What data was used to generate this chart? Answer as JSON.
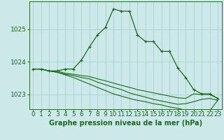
{
  "title": "Graphe pression niveau de la mer (hPa)",
  "bg_color": "#cce8e8",
  "grid_color": "#aad4d4",
  "line_color": "#1a6b1a",
  "hours": [
    0,
    1,
    2,
    3,
    4,
    5,
    6,
    7,
    8,
    9,
    10,
    11,
    12,
    13,
    14,
    15,
    16,
    17,
    18,
    19,
    20,
    21,
    22,
    23
  ],
  "series": [
    [
      1023.78,
      1023.78,
      1023.72,
      1023.72,
      1023.78,
      1023.78,
      1024.05,
      1024.45,
      1024.82,
      1025.05,
      1025.62,
      1025.55,
      1025.55,
      1024.82,
      1024.62,
      1024.62,
      1024.32,
      1024.32,
      1023.82,
      1023.52,
      1023.15,
      1023.02,
      1023.02,
      1022.88
    ],
    [
      1023.78,
      1023.78,
      1023.72,
      1023.72,
      1023.65,
      1023.62,
      1023.58,
      1023.55,
      1023.48,
      1023.42,
      1023.35,
      1023.28,
      1023.22,
      1023.15,
      1023.1,
      1023.05,
      1023.0,
      1022.95,
      1022.9,
      1022.88,
      1023.02,
      1023.0,
      1023.0,
      1022.88
    ],
    [
      1023.78,
      1023.78,
      1023.72,
      1023.68,
      1023.62,
      1023.58,
      1023.52,
      1023.48,
      1023.38,
      1023.3,
      1023.22,
      1023.15,
      1023.05,
      1022.98,
      1022.92,
      1022.85,
      1022.8,
      1022.75,
      1022.7,
      1022.72,
      1022.78,
      1022.85,
      1022.88,
      1022.82
    ],
    [
      1023.78,
      1023.78,
      1023.72,
      1023.68,
      1023.6,
      1023.52,
      1023.42,
      1023.32,
      1023.22,
      1023.12,
      1023.02,
      1022.95,
      1022.88,
      1022.82,
      1022.78,
      1022.72,
      1022.68,
      1022.62,
      1022.58,
      1022.52,
      1022.48,
      1022.48,
      1022.5,
      1022.82
    ]
  ],
  "ylim": [
    1022.55,
    1025.85
  ],
  "yticks": [
    1023.0,
    1024.0,
    1025.0
  ],
  "tick_fontsize": 6.5,
  "title_fontsize": 7.0
}
